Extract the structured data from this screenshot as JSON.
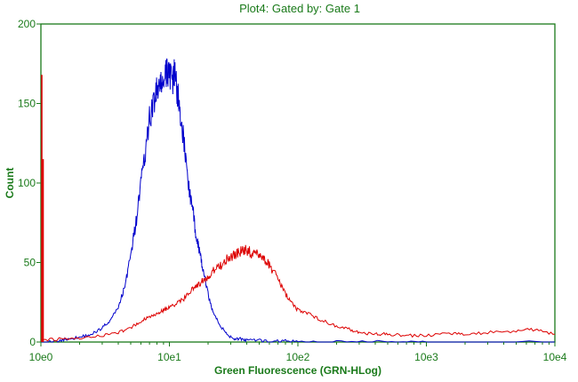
{
  "chart_data": {
    "type": "line",
    "title": "Plot4:  Gated by: Gate 1",
    "xlabel": "Green Fluorescence (GRN-HLog)",
    "ylabel": "Count",
    "x_scale": "log",
    "xlim": [
      1,
      10000
    ],
    "ylim": [
      0,
      200
    ],
    "x_ticks": [
      1,
      10,
      100,
      1000,
      10000
    ],
    "x_tick_labels": [
      "10e0",
      "10e1",
      "10e2",
      "10e3",
      "10e4"
    ],
    "y_ticks": [
      0,
      50,
      100,
      150,
      200
    ],
    "y_tick_labels": [
      "0",
      "50",
      "100",
      "150",
      "200"
    ],
    "grid": false,
    "axis_color": "#1a7a1a",
    "series": [
      {
        "color": "#0000cc",
        "x": [
          1.0,
          1.3,
          1.6,
          2.0,
          2.5,
          3.0,
          3.5,
          4.0,
          4.5,
          5.0,
          5.5,
          6.0,
          6.5,
          7.0,
          7.5,
          8.0,
          8.5,
          9.0,
          9.5,
          10.0,
          10.5,
          11.0,
          11.5,
          12.0,
          13.0,
          14.0,
          15.0,
          16.0,
          17.0,
          18.0,
          20.0,
          22.0,
          25.0,
          28.0,
          32.0,
          36.0,
          40.0,
          50.0,
          60.0,
          80.0,
          100.0,
          200.0,
          500.0,
          1000.0,
          10000.0
        ],
        "y": [
          0,
          0,
          2,
          3,
          5,
          9,
          14,
          22,
          35,
          55,
          75,
          100,
          118,
          140,
          150,
          158,
          160,
          165,
          168,
          172,
          160,
          170,
          158,
          148,
          125,
          100,
          85,
          70,
          58,
          48,
          30,
          18,
          10,
          5,
          2,
          2,
          1,
          1,
          0,
          1,
          0,
          0,
          0,
          0,
          0
        ]
      },
      {
        "color": "#dd0000",
        "x": [
          1.0,
          1.5,
          2.0,
          3.0,
          4.0,
          5.0,
          6.0,
          7.0,
          8.0,
          9.0,
          10.0,
          12.0,
          14.0,
          16.0,
          18.0,
          20.0,
          22.0,
          25.0,
          28.0,
          32.0,
          36.0,
          40.0,
          45.0,
          50.0,
          55.0,
          60.0,
          70.0,
          80.0,
          90.0,
          100.0,
          120.0,
          150.0,
          200.0,
          250.0,
          300.0,
          400.0,
          500.0,
          700.0,
          1000.0,
          1500.0,
          2000.0,
          3000.0,
          5000.0,
          7000.0,
          10000.0
        ],
        "y": [
          1,
          2,
          2,
          4,
          6,
          9,
          13,
          16,
          18,
          20,
          22,
          25,
          30,
          35,
          38,
          40,
          45,
          48,
          52,
          55,
          57,
          58,
          55,
          56,
          52,
          48,
          40,
          30,
          25,
          20,
          18,
          14,
          10,
          8,
          6,
          5,
          5,
          4,
          4,
          5,
          5,
          6,
          7,
          8,
          5
        ]
      }
    ],
    "spikes": [
      {
        "color": "#dd0000",
        "x": 1.0,
        "y": 168
      },
      {
        "color": "#dd0000",
        "x": 1.02,
        "y": 115
      }
    ]
  }
}
